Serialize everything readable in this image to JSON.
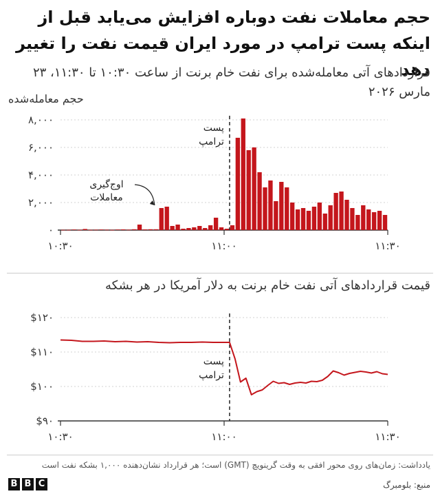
{
  "headline": "حجم معاملات نفت دوباره افزایش می‌یابد قبل از اینکه پست ترامپ در مورد ایران قیمت نفت را تغییر دهد",
  "subtitle": "قراردادهای آتی معامله‌شده برای نفت خام برنت از ساعت ۱۰:۳۰ تا ۱۱:۳۰، ۲۳ مارس ۲۰۲۶",
  "footer": {
    "note": "یادداشت: زمان‌های روی محور افقی به وقت گرینویچ (GMT) است؛ هر قرارداد نشان‌دهنده ۱,۰۰۰ بشکه نفت است",
    "source": "منبع: بلومبرگ",
    "logo_letters": [
      "B",
      "B",
      "C"
    ]
  },
  "colors": {
    "bar": "#c4161c",
    "line": "#c4161c",
    "axis": "#333333",
    "grid": "#d0d0d0"
  },
  "chart_data": [
    {
      "type": "bar",
      "ylabel": "حجم معامله‌شده",
      "ylim": [
        0,
        8000
      ],
      "y_ticks": [
        0,
        2000,
        4000,
        6000,
        8000
      ],
      "y_tick_labels": [
        "0",
        "2,000",
        "4,000",
        "6,000",
        "8,000"
      ],
      "x_range_minutes": [
        0,
        60
      ],
      "x_ticks": [
        0,
        30,
        60
      ],
      "x_tick_labels": [
        "10:30",
        "11:00",
        "11:30"
      ],
      "grid": true,
      "event_label": [
        "پست",
        "ترامپ"
      ],
      "event_x": 31,
      "annotation": {
        "text": [
          "اوج‌گیری",
          "معاملات"
        ],
        "x": 17.5,
        "y": 1600
      },
      "x": [
        0,
        1,
        2,
        3,
        4,
        5,
        6,
        7,
        8,
        9,
        10,
        11,
        12,
        13,
        14,
        15,
        16,
        17,
        18,
        19,
        20,
        21,
        22,
        23,
        24,
        25,
        26,
        27,
        28,
        29,
        30,
        31,
        32,
        33,
        34,
        35,
        36,
        37,
        38,
        39,
        40,
        41,
        42,
        43,
        44,
        45,
        46,
        47,
        48,
        49,
        50,
        51,
        52,
        53,
        54,
        55,
        56,
        57,
        58,
        59
      ],
      "values": [
        20,
        20,
        40,
        20,
        80,
        20,
        30,
        40,
        30,
        20,
        40,
        50,
        30,
        60,
        400,
        50,
        60,
        60,
        1600,
        1700,
        300,
        400,
        100,
        150,
        200,
        300,
        150,
        350,
        900,
        200,
        100,
        350,
        6700,
        8100,
        5800,
        6000,
        4200,
        3100,
        3600,
        2100,
        3500,
        3100,
        2000,
        1500,
        1600,
        1400,
        1700,
        2000,
        1200,
        1800,
        2700,
        2800,
        2200,
        1600,
        1100,
        1800,
        1500,
        1300,
        1400,
        1100
      ]
    },
    {
      "type": "line",
      "title": "قیمت قراردادهای آتی نفت خام برنت به دلار آمریکا در هر بشکه",
      "ylim": [
        90,
        120
      ],
      "y_ticks": [
        90,
        100,
        110,
        120
      ],
      "y_tick_labels": [
        "$90",
        "$100",
        "$110",
        "$120"
      ],
      "x_range_minutes": [
        0,
        60
      ],
      "x_ticks": [
        0,
        30,
        60
      ],
      "x_tick_labels": [
        "10:30",
        "11:00",
        "11:30"
      ],
      "grid": true,
      "event_label": [
        "پست",
        "ترامپ"
      ],
      "event_x": 31,
      "x": [
        0,
        2,
        4,
        6,
        8,
        10,
        12,
        14,
        16,
        18,
        20,
        22,
        24,
        26,
        28,
        30,
        31,
        32,
        33,
        34,
        35,
        36,
        37,
        38,
        39,
        40,
        41,
        42,
        43,
        44,
        45,
        46,
        47,
        48,
        49,
        50,
        51,
        52,
        53,
        54,
        55,
        56,
        57,
        58,
        59,
        60
      ],
      "values": [
        113.5,
        113.4,
        113.1,
        113.1,
        113.2,
        113.0,
        113.1,
        112.9,
        113.0,
        112.8,
        112.7,
        112.8,
        112.8,
        112.9,
        112.8,
        112.8,
        112.8,
        108.0,
        101.3,
        102.4,
        97.6,
        98.5,
        99.0,
        100.3,
        101.5,
        100.9,
        101.1,
        100.6,
        101.0,
        101.2,
        101.0,
        101.5,
        101.4,
        101.8,
        102.9,
        104.5,
        104.0,
        103.3,
        103.8,
        104.1,
        104.4,
        104.2,
        103.9,
        104.3,
        103.7,
        103.5
      ]
    }
  ]
}
